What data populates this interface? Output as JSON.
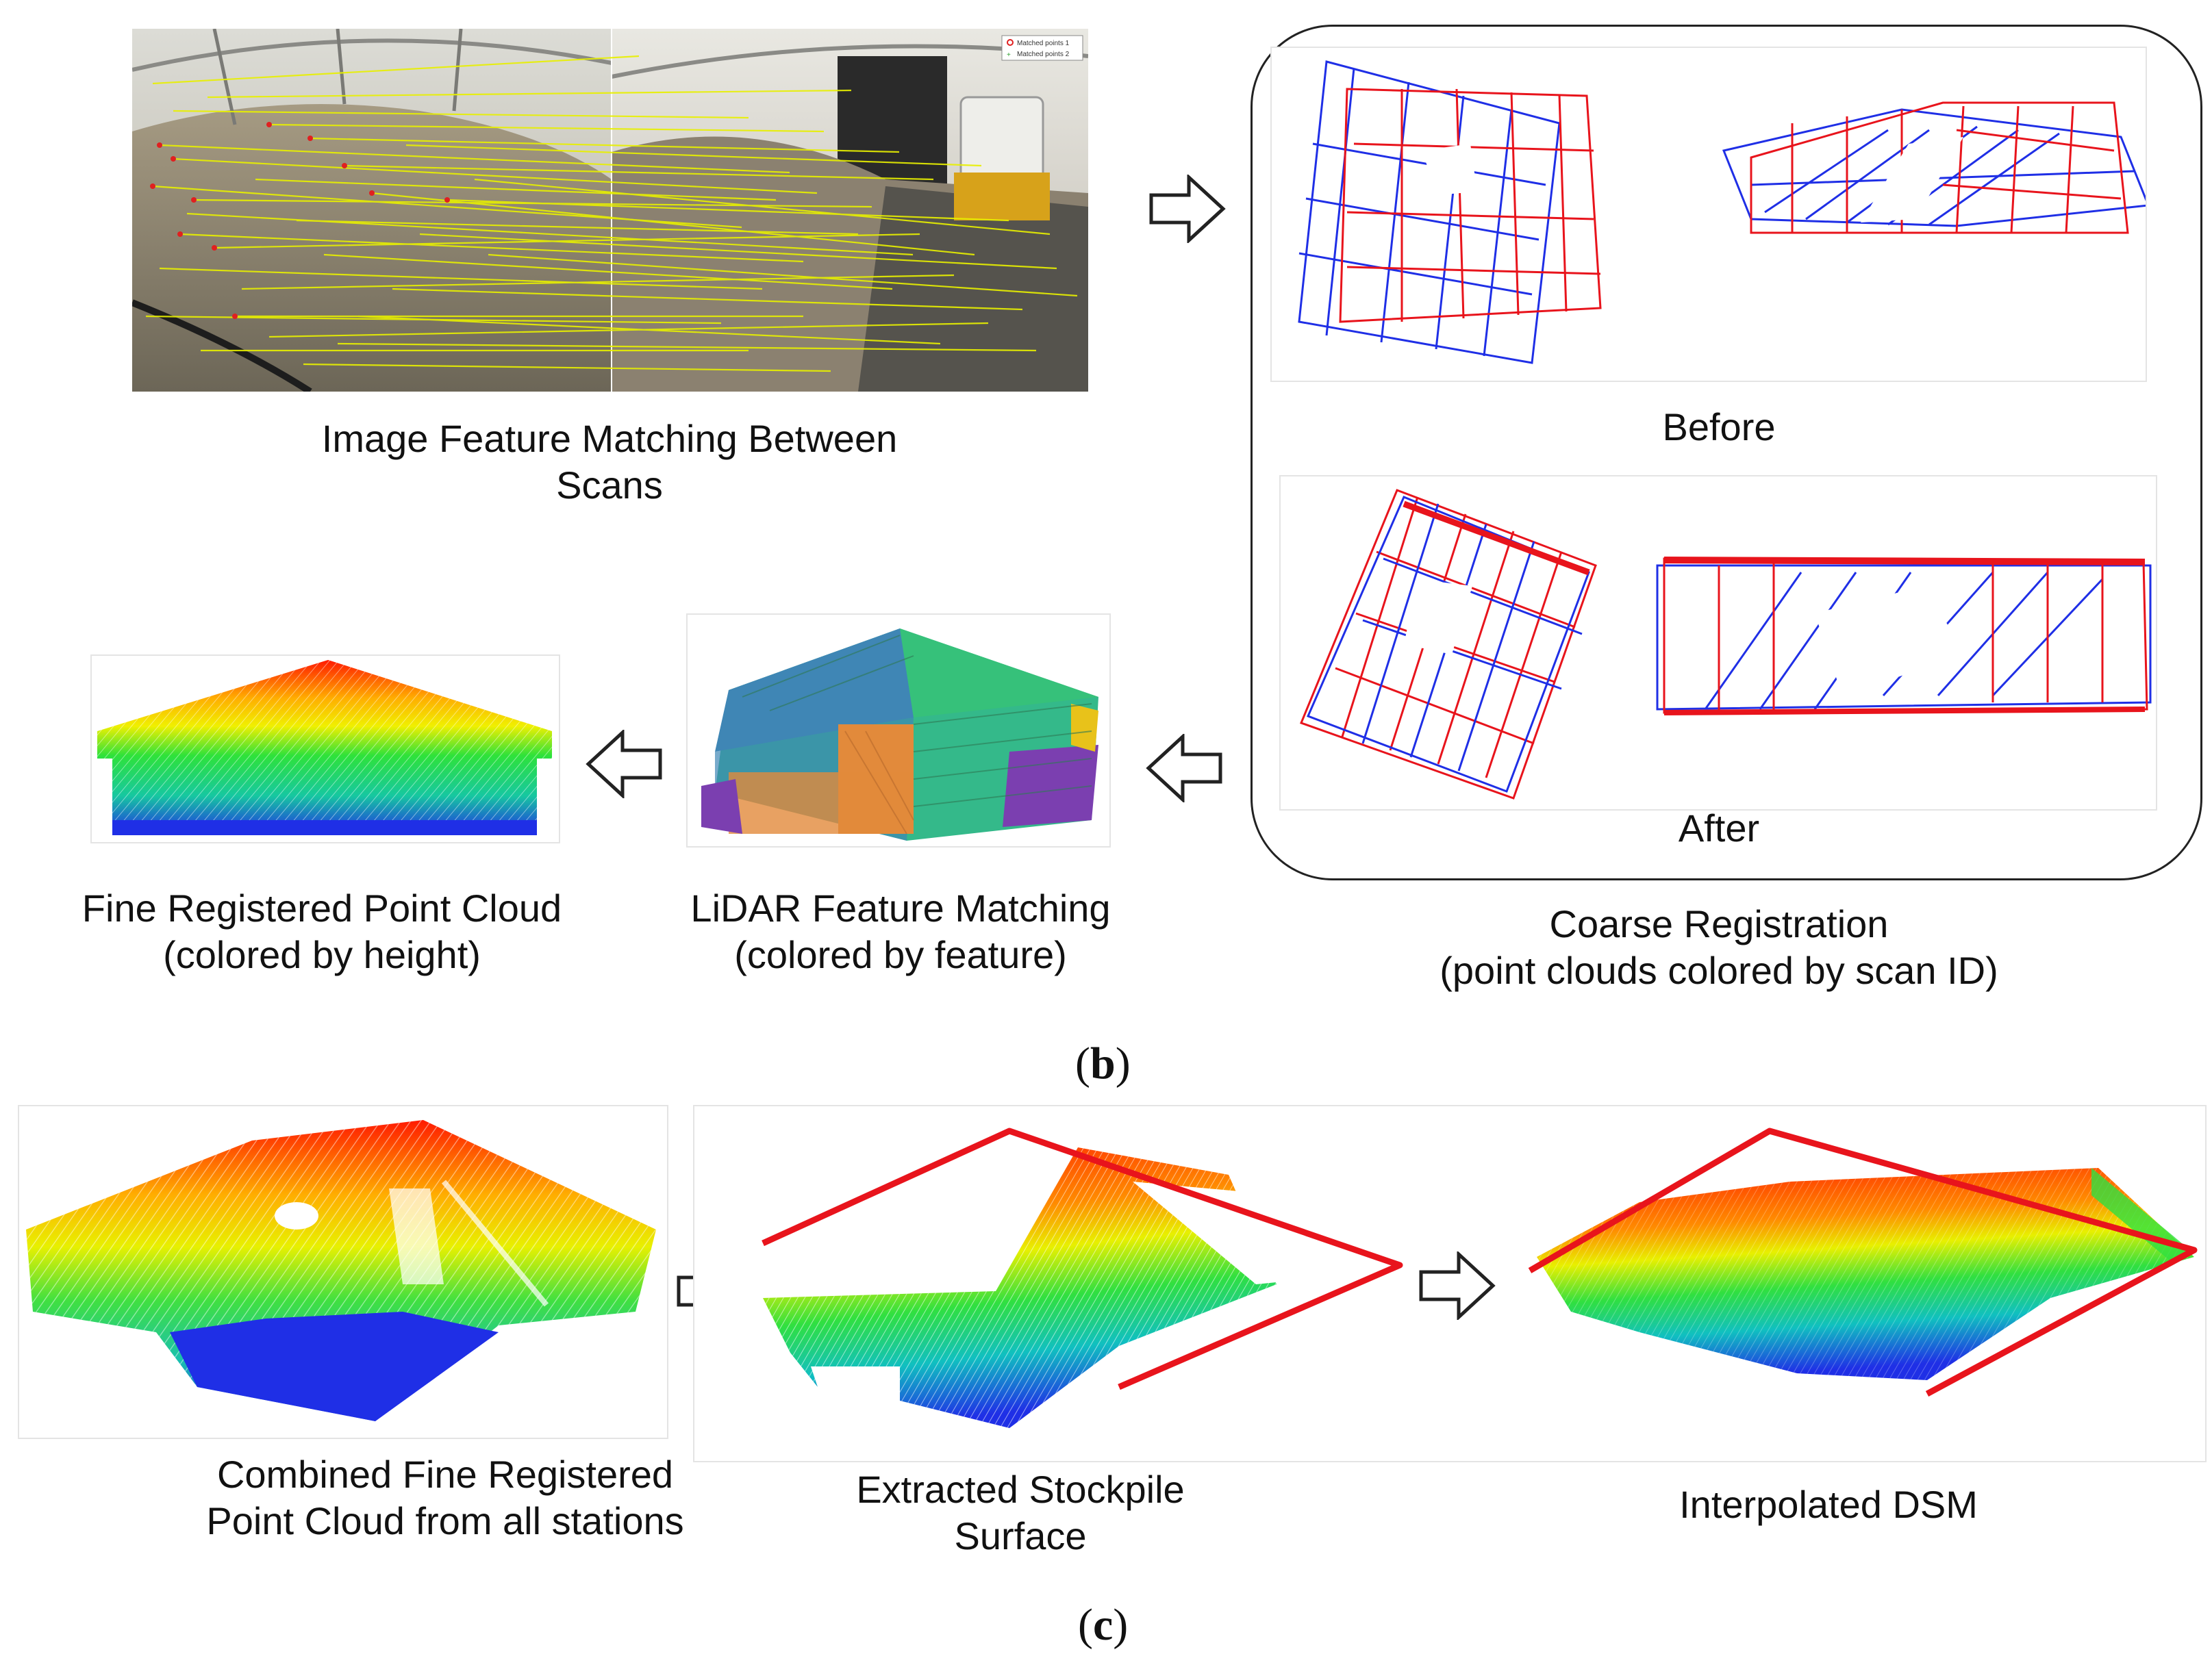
{
  "figure": {
    "panel_b_label": "b",
    "panel_c_label": "c",
    "matched_legend": {
      "item1": "Matched points 1",
      "item2": "Matched points 2"
    }
  },
  "captions": {
    "image_matching": [
      "Image Feature Matching Between",
      "Scans"
    ],
    "coarse_before": "Before",
    "coarse_after": "After",
    "coarse_registration": [
      "Coarse Registration",
      "(point clouds colored by scan ID)"
    ],
    "lidar_matching": [
      "LiDAR Feature Matching",
      "(colored by feature)"
    ],
    "fine_registered": [
      "Fine Registered Point Cloud",
      "(colored by height)"
    ],
    "combined": [
      "Combined Fine Registered",
      "Point Cloud from all stations"
    ],
    "extracted": [
      "Extracted Stockpile",
      "Surface"
    ],
    "interpolated": "Interpolated DSM"
  },
  "colors": {
    "scan1": "#e8141c",
    "scan2": "#1f2fe6",
    "match_line": "#e8f000",
    "frame_border": "#222222"
  },
  "icons": {
    "arrow": "hollow-arrow-icon"
  }
}
